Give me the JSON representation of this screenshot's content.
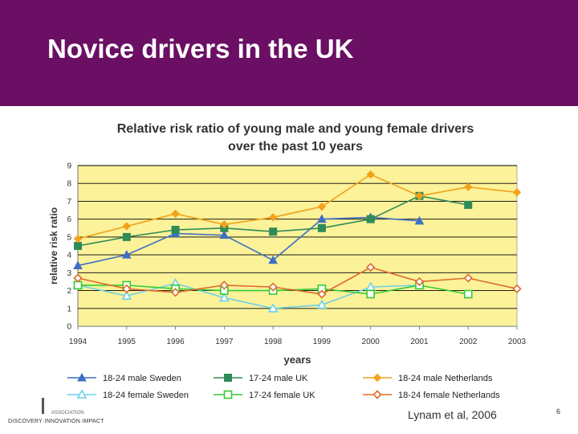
{
  "slide": {
    "title": "Novice drivers in the UK",
    "credit": "Lynam et al, 2006",
    "page_number": "6",
    "logo_tagline": "DISCOVERY·INNOVATION·IMPACT",
    "logo_small": "ASSOCIATION"
  },
  "colors": {
    "header_bg": "#6a0f63",
    "plot_bg": "#fbf29a",
    "male_sweden": "#3f6fc4",
    "male_uk": "#2e8b57",
    "male_netherlands": "#f2a21b",
    "female_sweden": "#6fd0e8",
    "female_uk": "#33cc33",
    "female_netherlands": "#e06a2c"
  },
  "chart_data": {
    "type": "line",
    "title_lines": [
      "Relative risk ratio of young male and young female drivers",
      "over the past 10 years"
    ],
    "xlabel": "years",
    "ylabel": "relative risk ratio",
    "x": [
      1994,
      1995,
      1996,
      1997,
      1998,
      1999,
      2000,
      2001,
      2002,
      2003
    ],
    "ylim": [
      0,
      9
    ],
    "yticks": [
      0,
      1,
      2,
      3,
      4,
      5,
      6,
      7,
      8,
      9
    ],
    "grid": "horizontal",
    "legend_position": "bottom",
    "series": [
      {
        "name": "18-24 male Sweden",
        "color": "#3f6fc4",
        "marker": "triangle",
        "filled": true,
        "values": [
          3.4,
          4.0,
          5.2,
          5.1,
          3.7,
          6.0,
          6.1,
          5.9,
          null,
          null
        ]
      },
      {
        "name": "17-24 male UK",
        "color": "#2e8b57",
        "marker": "square",
        "filled": true,
        "values": [
          4.5,
          5.0,
          5.4,
          5.5,
          5.3,
          5.5,
          6.0,
          7.3,
          6.8,
          null
        ]
      },
      {
        "name": "18-24 male Netherlands",
        "color": "#f2a21b",
        "marker": "diamond",
        "filled": true,
        "values": [
          4.9,
          5.6,
          6.3,
          5.7,
          6.1,
          6.7,
          8.5,
          7.3,
          7.8,
          7.5
        ]
      },
      {
        "name": "18-24 female Sweden",
        "color": "#6fd0e8",
        "marker": "triangle",
        "filled": false,
        "values": [
          2.3,
          1.7,
          2.4,
          1.6,
          1.0,
          1.2,
          2.2,
          2.3,
          null,
          null
        ]
      },
      {
        "name": "17-24 female UK",
        "color": "#33cc33",
        "marker": "square",
        "filled": false,
        "values": [
          2.3,
          2.3,
          2.1,
          2.0,
          2.0,
          2.1,
          1.8,
          2.3,
          1.8,
          null
        ]
      },
      {
        "name": "18-24 female Netherlands",
        "color": "#e06a2c",
        "marker": "diamond",
        "filled": false,
        "values": [
          2.7,
          2.1,
          1.9,
          2.3,
          2.2,
          1.8,
          3.3,
          2.5,
          2.7,
          2.1
        ]
      }
    ]
  }
}
